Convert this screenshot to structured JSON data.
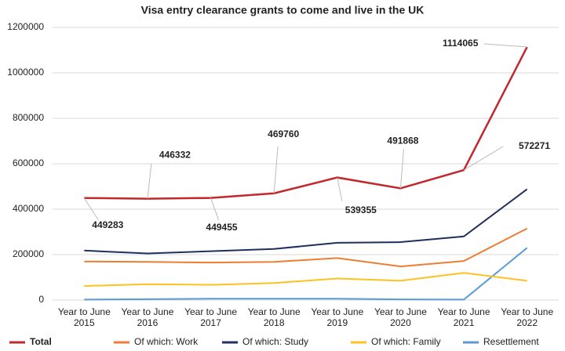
{
  "chart_data": {
    "type": "line",
    "title": "Visa entry clearance grants to come and live in the UK",
    "categories": [
      "Year to June 2015",
      "Year to June 2016",
      "Year to June 2017",
      "Year to June 2018",
      "Year to June 2019",
      "Year to June 2020",
      "Year to June 2021",
      "Year to June 2022"
    ],
    "series": [
      {
        "name": "Total",
        "color": "#c0282d",
        "values": [
          449283,
          446332,
          449455,
          469760,
          539355,
          491868,
          572271,
          1114065
        ]
      },
      {
        "name": "Of which: Work",
        "color": "#ed7d31",
        "values": [
          170000,
          168000,
          165000,
          168000,
          185000,
          148000,
          172000,
          315000
        ]
      },
      {
        "name": "Of which: Study",
        "color": "#1f2f5e",
        "values": [
          218000,
          205000,
          215000,
          225000,
          252000,
          255000,
          280000,
          488000
        ]
      },
      {
        "name": "Of which: Family",
        "color": "#ffc020",
        "values": [
          62000,
          70000,
          67000,
          75000,
          95000,
          85000,
          120000,
          85000
        ]
      },
      {
        "name": "Resettlement",
        "color": "#5b9bd5",
        "values": [
          2000,
          4000,
          6000,
          6000,
          6000,
          3000,
          2000,
          230000
        ]
      }
    ],
    "ylim": [
      0,
      1200000
    ],
    "yticks": [
      0,
      200000,
      400000,
      600000,
      800000,
      1000000,
      1200000
    ],
    "grid": true,
    "legend": "bottom"
  }
}
